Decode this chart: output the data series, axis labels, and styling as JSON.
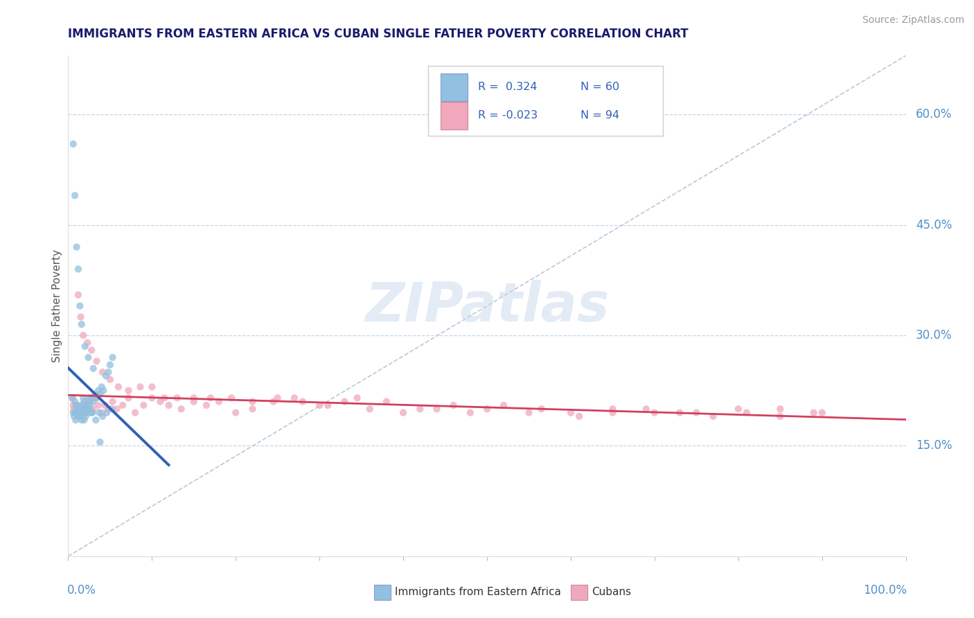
{
  "title": "IMMIGRANTS FROM EASTERN AFRICA VS CUBAN SINGLE FATHER POVERTY CORRELATION CHART",
  "source": "Source: ZipAtlas.com",
  "ylabel": "Single Father Poverty",
  "ylabel_right_ticks": [
    "15.0%",
    "30.0%",
    "45.0%",
    "60.0%"
  ],
  "ylabel_right_vals": [
    0.15,
    0.3,
    0.45,
    0.6
  ],
  "watermark": "ZIPatlas",
  "r1_text": "R =  0.324",
  "n1_text": "N = 60",
  "r2_text": "R = -0.023",
  "n2_text": "N = 94",
  "legend_label1": "Immigrants from Eastern Africa",
  "legend_label2": "Cubans",
  "blue_color": "#92c0e0",
  "pink_color": "#f0a8bc",
  "blue_line_color": "#3060b8",
  "pink_line_color": "#d04060",
  "title_color": "#1a1a6e",
  "axis_label_color": "#5090c8",
  "grid_color": "#c0d8e8",
  "xlim": [
    0.0,
    1.0
  ],
  "ylim": [
    0.0,
    0.68
  ],
  "blue_x": [
    0.005,
    0.008,
    0.009,
    0.01,
    0.011,
    0.012,
    0.013,
    0.014,
    0.015,
    0.016,
    0.017,
    0.018,
    0.019,
    0.02,
    0.021,
    0.022,
    0.023,
    0.024,
    0.025,
    0.026,
    0.027,
    0.028,
    0.03,
    0.032,
    0.034,
    0.036,
    0.038,
    0.04,
    0.042,
    0.045,
    0.048,
    0.05,
    0.053,
    0.006,
    0.007,
    0.009,
    0.011,
    0.013,
    0.015,
    0.017,
    0.019,
    0.021,
    0.023,
    0.026,
    0.029,
    0.033,
    0.037,
    0.041,
    0.046,
    0.052,
    0.006,
    0.008,
    0.01,
    0.012,
    0.014,
    0.016,
    0.02,
    0.024,
    0.03,
    0.038
  ],
  "blue_y": [
    0.215,
    0.21,
    0.195,
    0.205,
    0.2,
    0.19,
    0.195,
    0.2,
    0.205,
    0.185,
    0.195,
    0.215,
    0.21,
    0.2,
    0.205,
    0.195,
    0.205,
    0.2,
    0.215,
    0.21,
    0.195,
    0.215,
    0.21,
    0.22,
    0.215,
    0.225,
    0.22,
    0.23,
    0.225,
    0.245,
    0.25,
    0.26,
    0.27,
    0.195,
    0.19,
    0.185,
    0.195,
    0.19,
    0.2,
    0.195,
    0.185,
    0.19,
    0.195,
    0.2,
    0.195,
    0.185,
    0.195,
    0.19,
    0.195,
    0.2,
    0.56,
    0.49,
    0.42,
    0.39,
    0.34,
    0.315,
    0.285,
    0.27,
    0.255,
    0.155
  ],
  "pink_x": [
    0.005,
    0.007,
    0.008,
    0.009,
    0.01,
    0.011,
    0.012,
    0.013,
    0.014,
    0.015,
    0.016,
    0.017,
    0.018,
    0.019,
    0.02,
    0.022,
    0.024,
    0.026,
    0.028,
    0.03,
    0.033,
    0.036,
    0.04,
    0.044,
    0.048,
    0.053,
    0.058,
    0.065,
    0.072,
    0.08,
    0.09,
    0.1,
    0.11,
    0.12,
    0.135,
    0.15,
    0.165,
    0.18,
    0.2,
    0.22,
    0.245,
    0.27,
    0.3,
    0.33,
    0.36,
    0.4,
    0.44,
    0.48,
    0.52,
    0.565,
    0.61,
    0.65,
    0.69,
    0.73,
    0.77,
    0.81,
    0.85,
    0.89,
    0.006,
    0.009,
    0.012,
    0.015,
    0.018,
    0.023,
    0.028,
    0.034,
    0.041,
    0.05,
    0.06,
    0.072,
    0.086,
    0.1,
    0.115,
    0.13,
    0.15,
    0.17,
    0.195,
    0.22,
    0.25,
    0.28,
    0.31,
    0.345,
    0.38,
    0.42,
    0.46,
    0.5,
    0.55,
    0.6,
    0.65,
    0.7,
    0.75,
    0.8,
    0.85,
    0.9
  ],
  "pink_y": [
    0.215,
    0.2,
    0.195,
    0.205,
    0.195,
    0.2,
    0.195,
    0.19,
    0.2,
    0.195,
    0.205,
    0.2,
    0.195,
    0.205,
    0.195,
    0.2,
    0.21,
    0.205,
    0.195,
    0.2,
    0.215,
    0.205,
    0.195,
    0.205,
    0.2,
    0.21,
    0.2,
    0.205,
    0.215,
    0.195,
    0.205,
    0.215,
    0.21,
    0.205,
    0.2,
    0.215,
    0.205,
    0.21,
    0.195,
    0.2,
    0.21,
    0.215,
    0.205,
    0.21,
    0.2,
    0.195,
    0.2,
    0.195,
    0.205,
    0.2,
    0.19,
    0.195,
    0.2,
    0.195,
    0.19,
    0.195,
    0.2,
    0.195,
    0.205,
    0.195,
    0.355,
    0.325,
    0.3,
    0.29,
    0.28,
    0.265,
    0.25,
    0.24,
    0.23,
    0.225,
    0.23,
    0.23,
    0.215,
    0.215,
    0.21,
    0.215,
    0.215,
    0.21,
    0.215,
    0.21,
    0.205,
    0.215,
    0.21,
    0.2,
    0.205,
    0.2,
    0.195,
    0.195,
    0.2,
    0.195,
    0.195,
    0.2,
    0.19,
    0.195
  ]
}
